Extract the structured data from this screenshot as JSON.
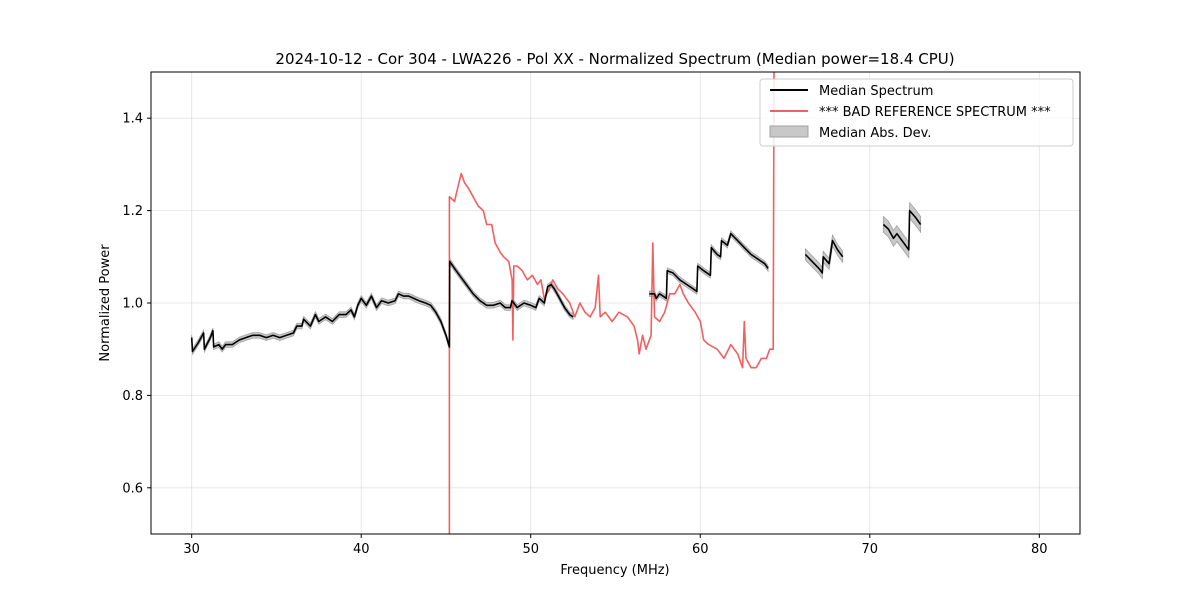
{
  "chart_data": {
    "type": "line",
    "title": "2024-10-12 - Cor 304 - LWA226 - Pol XX - Normalized Spectrum (Median power=18.4 CPU)",
    "xlabel": "Frequency (MHz)",
    "ylabel": "Normalized Power",
    "xlim": [
      27.6,
      82.4
    ],
    "ylim": [
      0.5,
      1.5
    ],
    "x_ticks": [
      30,
      40,
      50,
      60,
      70,
      80
    ],
    "y_ticks": [
      0.6,
      0.8,
      1.0,
      1.2,
      1.4
    ],
    "x_tick_labels": [
      "30",
      "40",
      "50",
      "60",
      "70",
      "80"
    ],
    "y_tick_labels": [
      "0.6",
      "0.8",
      "1.0",
      "1.2",
      "1.4"
    ],
    "grid": true,
    "legend_position": "top-right",
    "legend": [
      {
        "label": "Median Spectrum",
        "kind": "line",
        "color": "#000000"
      },
      {
        "label": "*** BAD REFERENCE SPECTRUM ***",
        "kind": "line",
        "color": "#f06060"
      },
      {
        "label": "Median Abs. Dev.",
        "kind": "patch",
        "color": "#c8c8c8"
      }
    ],
    "series": [
      {
        "name": "*** BAD REFERENCE SPECTRUM ***",
        "color": "#f06060",
        "points": [
          [
            45.2,
            0.5
          ],
          [
            45.2,
            1.23
          ],
          [
            45.5,
            1.22
          ],
          [
            45.7,
            1.25
          ],
          [
            45.9,
            1.28
          ],
          [
            46.1,
            1.26
          ],
          [
            46.3,
            1.25
          ],
          [
            46.6,
            1.23
          ],
          [
            46.9,
            1.21
          ],
          [
            47.2,
            1.2
          ],
          [
            47.4,
            1.17
          ],
          [
            47.7,
            1.17
          ],
          [
            47.9,
            1.13
          ],
          [
            48.2,
            1.11
          ],
          [
            48.4,
            1.1
          ],
          [
            48.7,
            1.09
          ],
          [
            48.9,
            1.05
          ],
          [
            48.95,
            0.92
          ],
          [
            49.0,
            1.08
          ],
          [
            49.2,
            1.08
          ],
          [
            49.5,
            1.07
          ],
          [
            49.8,
            1.05
          ],
          [
            50.1,
            1.06
          ],
          [
            50.4,
            1.04
          ],
          [
            50.6,
            1.05
          ],
          [
            50.8,
            1.01
          ],
          [
            51.1,
            1.03
          ],
          [
            51.3,
            1.05
          ],
          [
            51.6,
            1.03
          ],
          [
            51.9,
            1.02
          ],
          [
            52.3,
            1.0
          ],
          [
            52.6,
            0.97
          ],
          [
            52.9,
            1.0
          ],
          [
            53.2,
            0.98
          ],
          [
            53.5,
            0.97
          ],
          [
            53.8,
            0.99
          ],
          [
            54.0,
            1.06
          ],
          [
            54.1,
            0.97
          ],
          [
            54.4,
            0.98
          ],
          [
            54.8,
            0.96
          ],
          [
            55.2,
            0.98
          ],
          [
            55.7,
            0.97
          ],
          [
            56.1,
            0.95
          ],
          [
            56.3,
            0.92
          ],
          [
            56.4,
            0.89
          ],
          [
            56.6,
            0.93
          ],
          [
            56.8,
            0.9
          ],
          [
            57.1,
            0.93
          ],
          [
            57.2,
            1.13
          ],
          [
            57.3,
            0.97
          ],
          [
            57.6,
            0.96
          ],
          [
            57.9,
            0.98
          ],
          [
            58.2,
            1.02
          ],
          [
            58.5,
            1.02
          ],
          [
            58.8,
            1.04
          ],
          [
            59.0,
            1.02
          ],
          [
            59.3,
            1.0
          ],
          [
            59.7,
            0.98
          ],
          [
            60.0,
            0.96
          ],
          [
            60.2,
            0.92
          ],
          [
            60.5,
            0.91
          ],
          [
            61.0,
            0.9
          ],
          [
            61.4,
            0.88
          ],
          [
            61.8,
            0.91
          ],
          [
            62.2,
            0.89
          ],
          [
            62.5,
            0.86
          ],
          [
            62.6,
            0.96
          ],
          [
            62.7,
            0.88
          ],
          [
            63.0,
            0.86
          ],
          [
            63.3,
            0.86
          ],
          [
            63.6,
            0.88
          ],
          [
            63.9,
            0.88
          ],
          [
            64.1,
            0.9
          ],
          [
            64.3,
            0.9
          ],
          [
            64.35,
            1.5
          ]
        ]
      },
      {
        "name": "Median Spectrum",
        "color": "#000000",
        "segments": [
          [
            [
              30.0,
              0.925
            ],
            [
              30.05,
              0.895
            ],
            [
              30.4,
              0.915
            ],
            [
              30.7,
              0.935
            ],
            [
              30.75,
              0.9
            ],
            [
              31.1,
              0.925
            ],
            [
              31.25,
              0.94
            ],
            [
              31.3,
              0.905
            ],
            [
              31.6,
              0.91
            ],
            [
              31.8,
              0.9
            ],
            [
              32.0,
              0.91
            ],
            [
              32.4,
              0.91
            ],
            [
              32.8,
              0.92
            ],
            [
              33.2,
              0.925
            ],
            [
              33.6,
              0.93
            ],
            [
              34.0,
              0.93
            ],
            [
              34.4,
              0.925
            ],
            [
              34.8,
              0.93
            ],
            [
              35.2,
              0.925
            ],
            [
              35.6,
              0.93
            ],
            [
              36.0,
              0.935
            ],
            [
              36.2,
              0.95
            ],
            [
              36.5,
              0.95
            ],
            [
              36.6,
              0.965
            ],
            [
              37.0,
              0.95
            ],
            [
              37.3,
              0.975
            ],
            [
              37.5,
              0.96
            ],
            [
              37.9,
              0.97
            ],
            [
              38.3,
              0.96
            ],
            [
              38.7,
              0.975
            ],
            [
              39.1,
              0.975
            ],
            [
              39.4,
              0.985
            ],
            [
              39.6,
              0.97
            ],
            [
              39.8,
              0.995
            ],
            [
              40.0,
              1.01
            ],
            [
              40.3,
              0.995
            ],
            [
              40.6,
              1.015
            ],
            [
              40.9,
              0.99
            ],
            [
              41.2,
              1.005
            ],
            [
              41.6,
              1.0
            ],
            [
              42.0,
              1.005
            ],
            [
              42.2,
              1.02
            ],
            [
              42.5,
              1.015
            ],
            [
              42.8,
              1.015
            ],
            [
              43.1,
              1.01
            ],
            [
              43.4,
              1.005
            ],
            [
              43.8,
              1.0
            ],
            [
              44.1,
              0.995
            ],
            [
              44.4,
              0.98
            ],
            [
              44.7,
              0.96
            ],
            [
              45.0,
              0.93
            ],
            [
              45.2,
              0.905
            ],
            [
              45.22,
              1.09
            ],
            [
              45.5,
              1.075
            ],
            [
              45.8,
              1.06
            ],
            [
              46.2,
              1.04
            ],
            [
              46.6,
              1.02
            ],
            [
              47.0,
              1.005
            ],
            [
              47.4,
              0.995
            ],
            [
              47.8,
              0.995
            ],
            [
              48.2,
              1.0
            ],
            [
              48.5,
              0.99
            ],
            [
              48.8,
              0.99
            ],
            [
              48.9,
              1.005
            ],
            [
              49.2,
              0.99
            ],
            [
              49.6,
              1.0
            ],
            [
              50.0,
              0.995
            ],
            [
              50.3,
              0.99
            ],
            [
              50.5,
              1.01
            ],
            [
              50.8,
              1.0
            ],
            [
              51.0,
              1.035
            ],
            [
              51.2,
              1.04
            ],
            [
              51.4,
              1.03
            ],
            [
              51.7,
              1.01
            ],
            [
              52.0,
              0.99
            ],
            [
              52.3,
              0.975
            ],
            [
              52.5,
              0.97
            ]
          ],
          [
            [
              57.0,
              1.02
            ],
            [
              57.3,
              1.02
            ],
            [
              57.4,
              1.01
            ],
            [
              57.6,
              1.02
            ],
            [
              57.8,
              1.015
            ],
            [
              58.0,
              1.01
            ],
            [
              58.05,
              1.07
            ],
            [
              58.4,
              1.065
            ],
            [
              58.8,
              1.05
            ],
            [
              59.2,
              1.04
            ],
            [
              59.6,
              1.03
            ],
            [
              59.8,
              1.025
            ],
            [
              59.85,
              1.08
            ],
            [
              60.2,
              1.07
            ],
            [
              60.6,
              1.06
            ],
            [
              60.65,
              1.12
            ],
            [
              61.0,
              1.105
            ],
            [
              61.2,
              1.1
            ],
            [
              61.25,
              1.135
            ],
            [
              61.6,
              1.125
            ],
            [
              61.8,
              1.15
            ],
            [
              62.2,
              1.135
            ],
            [
              62.6,
              1.12
            ],
            [
              63.0,
              1.105
            ],
            [
              63.4,
              1.095
            ],
            [
              63.8,
              1.085
            ],
            [
              64.0,
              1.075
            ]
          ],
          [
            [
              66.2,
              1.105
            ],
            [
              66.6,
              1.09
            ],
            [
              67.0,
              1.075
            ],
            [
              67.2,
              1.065
            ],
            [
              67.25,
              1.1
            ],
            [
              67.6,
              1.085
            ],
            [
              67.8,
              1.135
            ],
            [
              68.1,
              1.115
            ],
            [
              68.4,
              1.1
            ]
          ],
          [
            [
              70.8,
              1.17
            ],
            [
              71.1,
              1.16
            ],
            [
              71.4,
              1.14
            ],
            [
              71.6,
              1.15
            ],
            [
              72.0,
              1.13
            ],
            [
              72.3,
              1.115
            ],
            [
              72.35,
              1.2
            ],
            [
              72.7,
              1.185
            ],
            [
              73.0,
              1.17
            ]
          ]
        ]
      }
    ],
    "mad_band": {
      "name": "Median Abs. Dev.",
      "color": "#c8c8c8",
      "width": [
        0.006,
        0.006,
        0.012,
        0.017
      ]
    }
  }
}
